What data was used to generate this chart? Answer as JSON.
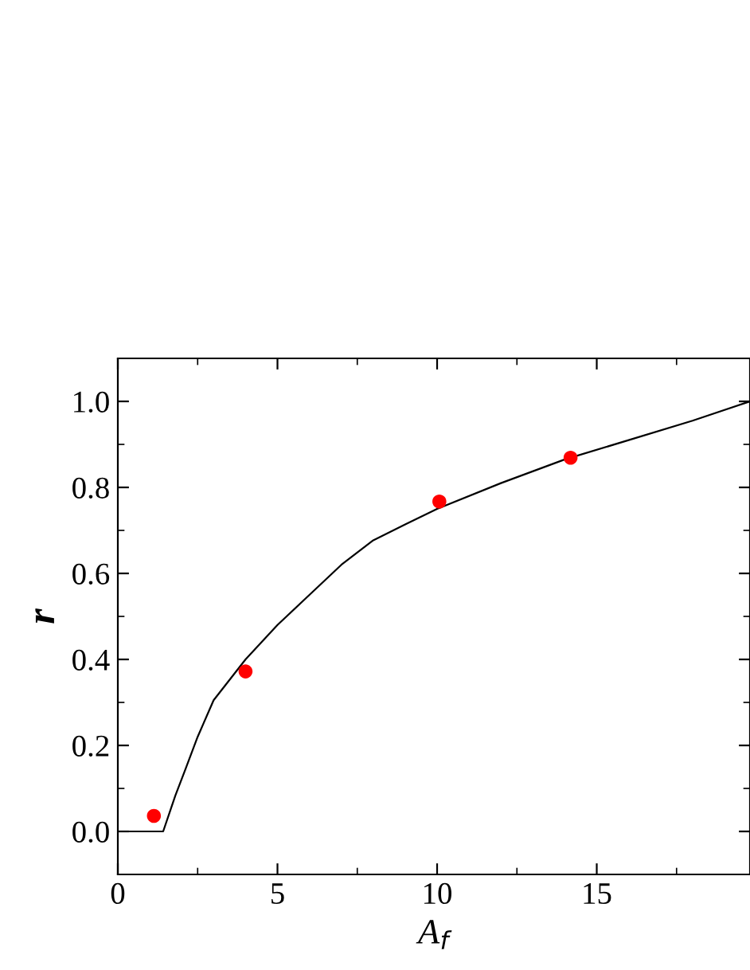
{
  "chart_data": {
    "type": "scatter",
    "xlabel": "A$_{f}$",
    "ylabel": "r",
    "xlim": [
      0,
      19.8
    ],
    "ylim": [
      -0.1,
      1.1
    ],
    "xticks": [
      0,
      5,
      10,
      15
    ],
    "yticks": [
      {
        "value": 0,
        "label": "0.0"
      },
      0.2,
      0.4,
      0.6,
      0.8,
      {
        "value": 1,
        "label": "1.0"
      }
    ],
    "grid": false,
    "marker": "circle",
    "series": [
      {
        "color": "#ff0000",
        "x": [
          1.13,
          4.0,
          10.07,
          14.18
        ],
        "values": [
          0.036,
          0.372,
          0.767,
          0.869
        ]
      },
      {
        "type": "line",
        "color": "#000000",
        "marker": "none",
        "line_style": "solid",
        "x": [
          0,
          1.42,
          1.8,
          2.12,
          2.5,
          3,
          4,
          5,
          6,
          7,
          8,
          9,
          10,
          12,
          14,
          16,
          18,
          19.8
        ],
        "values": [
          0,
          0,
          0.083,
          0.145,
          0.22,
          0.305,
          0.4,
          0.48,
          0.55,
          0.62,
          0.677,
          0.714,
          0.75,
          0.81,
          0.865,
          0.91,
          0.955,
          1.0
        ]
      }
    ]
  }
}
